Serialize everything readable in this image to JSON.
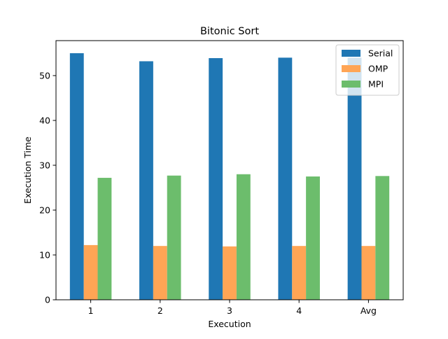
{
  "chart_data": {
    "type": "bar",
    "title": "Bitonic Sort",
    "xlabel": "Execution",
    "ylabel": "Execution Time",
    "categories": [
      "1",
      "2",
      "3",
      "4",
      "Avg"
    ],
    "series": [
      {
        "name": "Serial",
        "color": "#1f77b4",
        "values": [
          55.0,
          53.2,
          53.9,
          54.0,
          54.0
        ]
      },
      {
        "name": "OMP",
        "color": "#ffa555",
        "values": [
          12.2,
          12.0,
          11.9,
          12.0,
          12.0
        ]
      },
      {
        "name": "MPI",
        "color": "#6cbd6c",
        "values": [
          27.2,
          27.7,
          28.0,
          27.5,
          27.6
        ]
      }
    ],
    "ylim": [
      0,
      57.8
    ],
    "yticks": [
      0,
      10,
      20,
      30,
      40,
      50
    ],
    "grid": false,
    "legend_position": "top-right"
  }
}
